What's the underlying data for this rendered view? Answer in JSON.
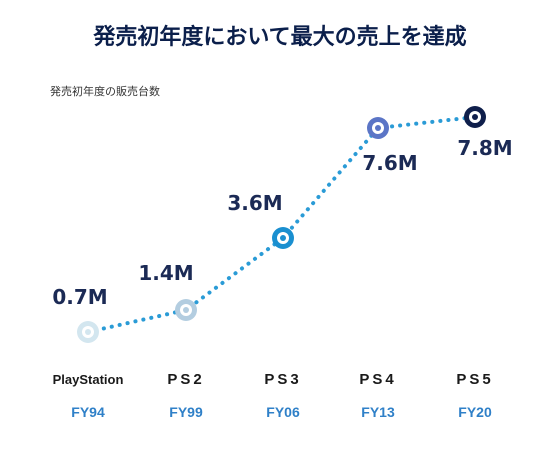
{
  "chart_data": {
    "type": "line",
    "title": "発売初年度において最大の売上を達成",
    "subtitle": "発売初年度の販売台数",
    "categories": [
      "FY94",
      "FY99",
      "FY06",
      "FY13",
      "FY20"
    ],
    "platforms": [
      "PlayStation",
      "PS2",
      "PS3",
      "PS4",
      "PS5"
    ],
    "series": [
      {
        "values": [
          0.7,
          1.4,
          3.6,
          7.6,
          7.8
        ],
        "value_labels": [
          "0.7M",
          "1.4M",
          "3.6M",
          "7.6M",
          "7.8M"
        ],
        "point_colors": [
          "#d3e6ef",
          "#b3cde0",
          "#1a8fd0",
          "#5b75c6",
          "#0f1f4b"
        ]
      }
    ],
    "ylim": [
      0,
      8.5
    ],
    "grid": false,
    "legend": "none"
  },
  "colors": {
    "title": "#0b1f4b",
    "subtitle": "#333333",
    "value_label": "#1b2a55",
    "fiscal_year": "#2f80c8",
    "line": "#2a9bd6",
    "logo": "#1a1a1a"
  }
}
